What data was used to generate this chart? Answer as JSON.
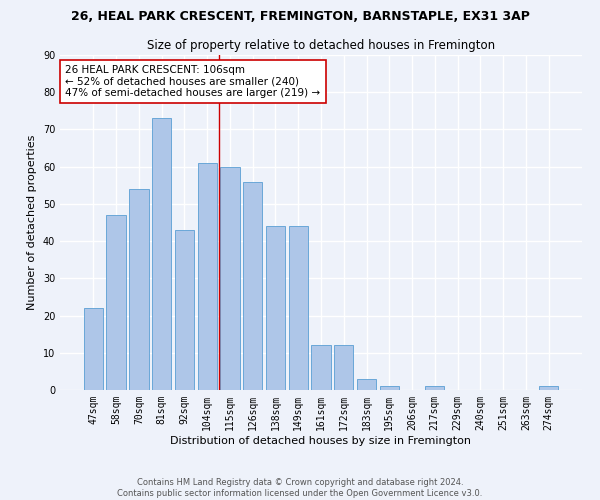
{
  "title1": "26, HEAL PARK CRESCENT, FREMINGTON, BARNSTAPLE, EX31 3AP",
  "title2": "Size of property relative to detached houses in Fremington",
  "xlabel": "Distribution of detached houses by size in Fremington",
  "ylabel": "Number of detached properties",
  "bar_labels": [
    "47sqm",
    "58sqm",
    "70sqm",
    "81sqm",
    "92sqm",
    "104sqm",
    "115sqm",
    "126sqm",
    "138sqm",
    "149sqm",
    "161sqm",
    "172sqm",
    "183sqm",
    "195sqm",
    "206sqm",
    "217sqm",
    "229sqm",
    "240sqm",
    "251sqm",
    "263sqm",
    "274sqm"
  ],
  "bar_values": [
    22,
    47,
    54,
    73,
    43,
    61,
    60,
    56,
    44,
    44,
    12,
    12,
    3,
    1,
    0,
    1,
    0,
    0,
    0,
    0,
    1
  ],
  "bar_color": "#aec6e8",
  "bar_edge_color": "#5a9fd4",
  "vline_x": 5.5,
  "vline_color": "#cc0000",
  "annotation_title": "26 HEAL PARK CRESCENT: 106sqm",
  "annotation_line1": "← 52% of detached houses are smaller (240)",
  "annotation_line2": "47% of semi-detached houses are larger (219) →",
  "annotation_box_color": "#ffffff",
  "annotation_box_edge": "#cc0000",
  "ylim": [
    0,
    90
  ],
  "yticks": [
    0,
    10,
    20,
    30,
    40,
    50,
    60,
    70,
    80,
    90
  ],
  "footnote1": "Contains HM Land Registry data © Crown copyright and database right 2024.",
  "footnote2": "Contains public sector information licensed under the Open Government Licence v3.0.",
  "bg_color": "#eef2fa",
  "grid_color": "#ffffff",
  "title1_fontsize": 9,
  "title2_fontsize": 8.5,
  "xlabel_fontsize": 8,
  "ylabel_fontsize": 8,
  "tick_fontsize": 7,
  "footnote_fontsize": 6,
  "ann_fontsize": 7.5
}
